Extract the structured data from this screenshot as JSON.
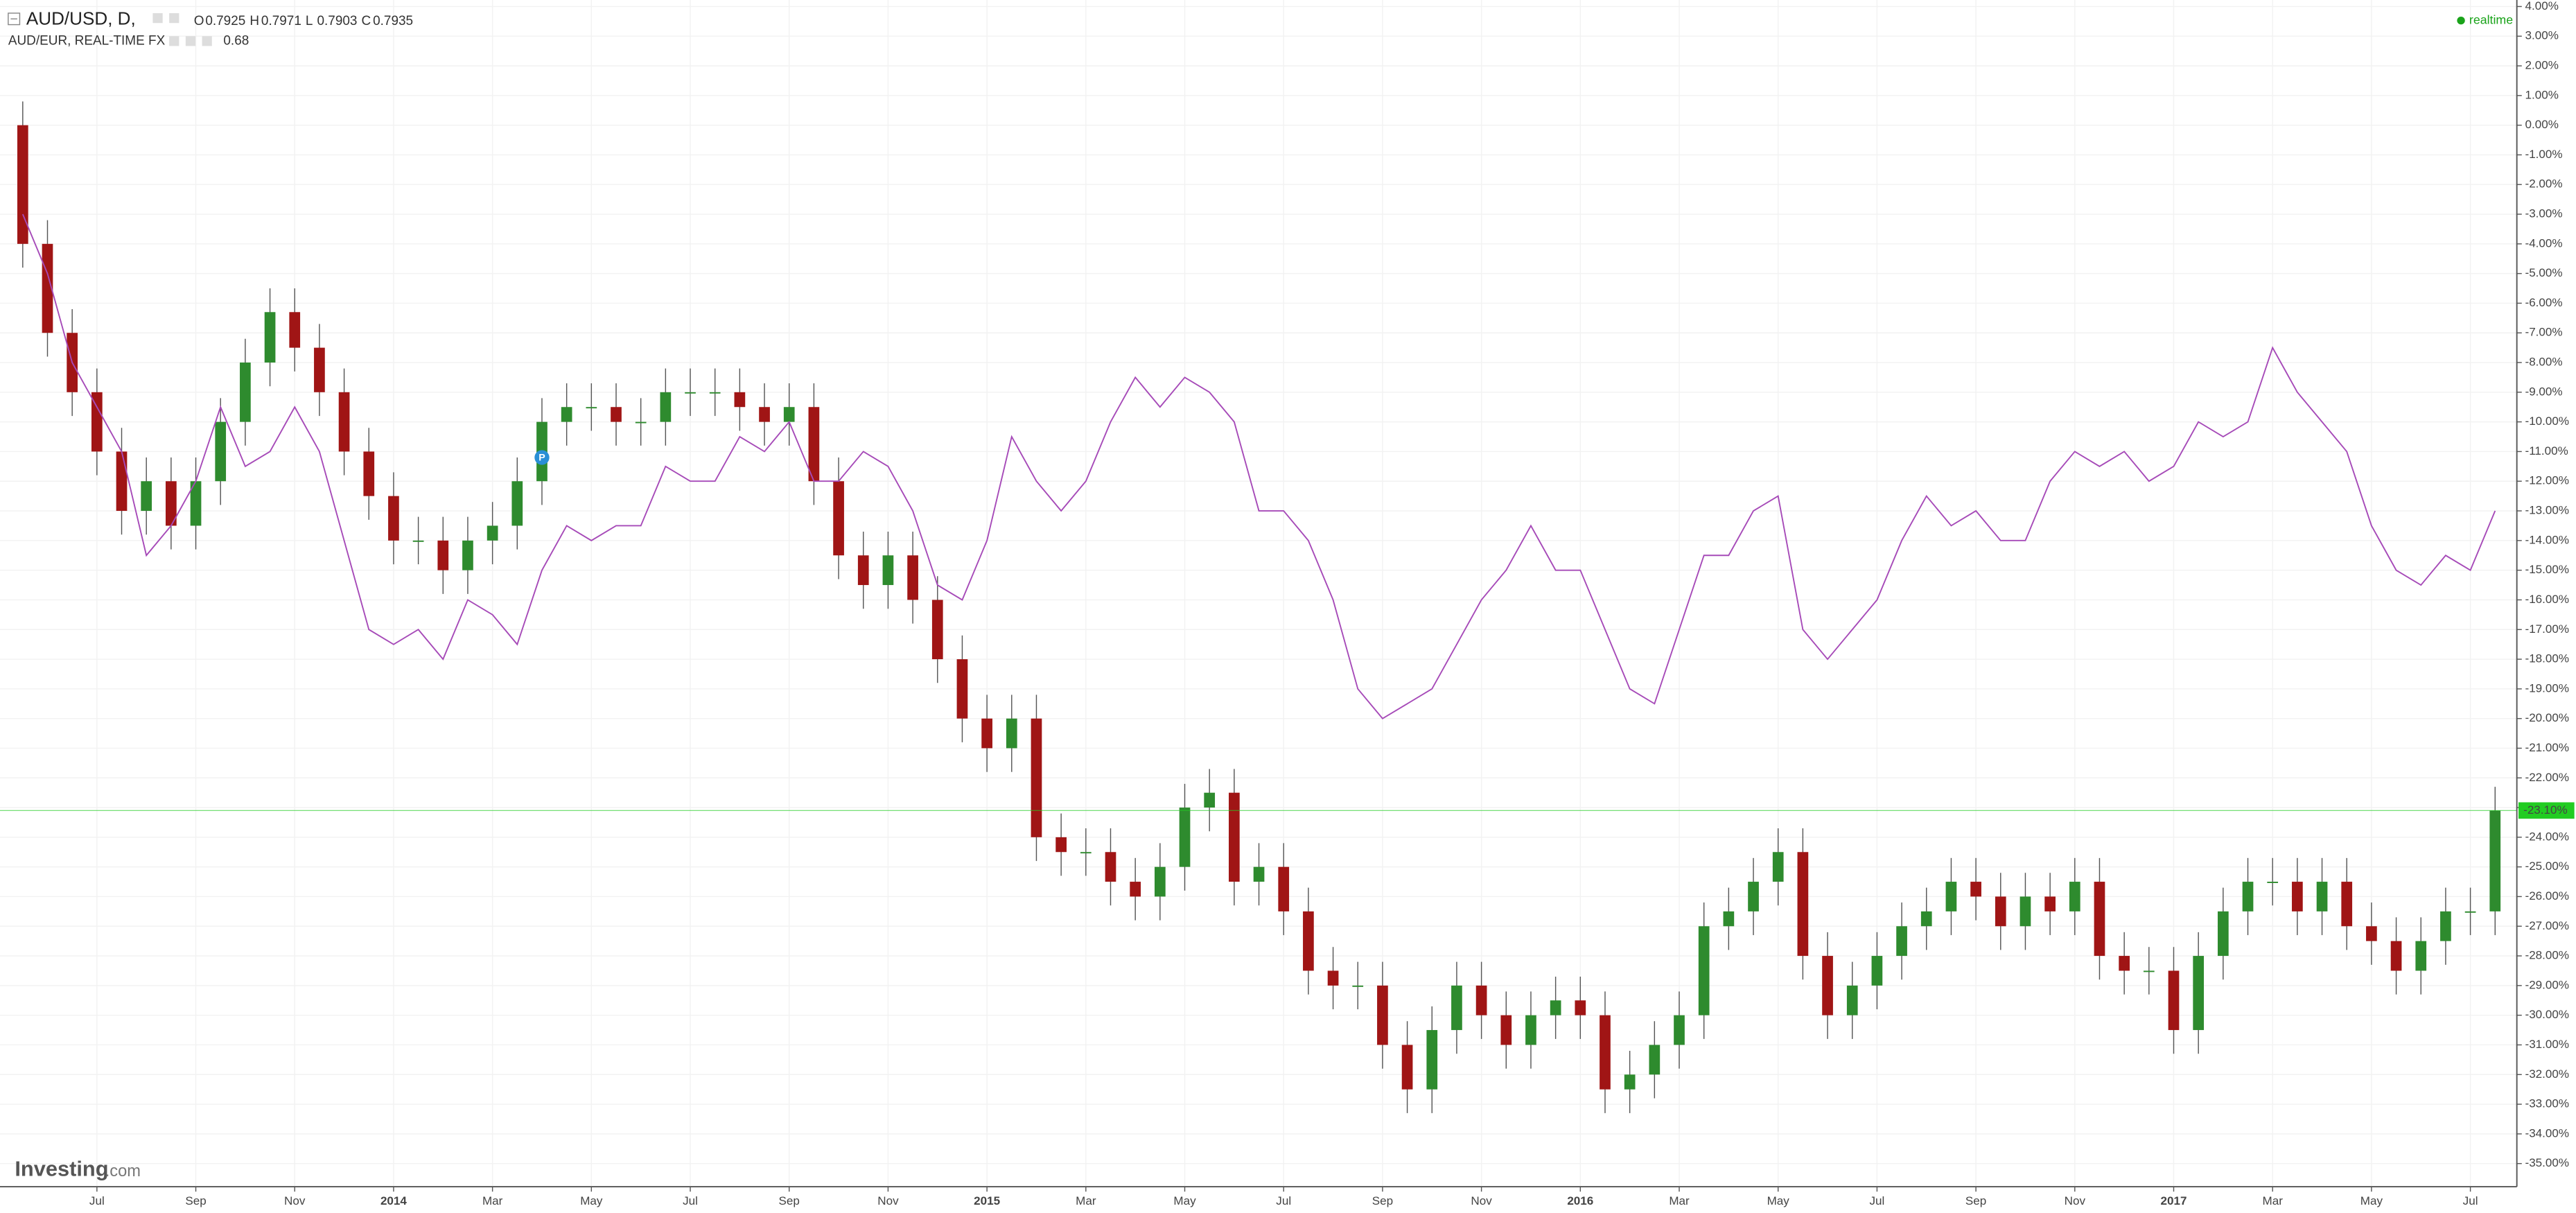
{
  "chart_data": {
    "type": "candlestick",
    "grid": true,
    "xlim": [
      4.04,
      54.94
    ],
    "ylim": [
      -35.78,
      4.22
    ],
    "xticks": [
      {
        "value": 6,
        "label": "Jul"
      },
      {
        "value": 8,
        "label": "Sep"
      },
      {
        "value": 10,
        "label": "Nov"
      },
      {
        "value": 12,
        "label": "2014"
      },
      {
        "value": 14,
        "label": "Mar"
      },
      {
        "value": 16,
        "label": "May"
      },
      {
        "value": 18,
        "label": "Jul"
      },
      {
        "value": 20,
        "label": "Sep"
      },
      {
        "value": 22,
        "label": "Nov"
      },
      {
        "value": 24,
        "label": "2015"
      },
      {
        "value": 26,
        "label": "Mar"
      },
      {
        "value": 28,
        "label": "May"
      },
      {
        "value": 30,
        "label": "Jul"
      },
      {
        "value": 32,
        "label": "Sep"
      },
      {
        "value": 34,
        "label": "Nov"
      },
      {
        "value": 36,
        "label": "2016"
      },
      {
        "value": 38,
        "label": "Mar"
      },
      {
        "value": 40,
        "label": "May"
      },
      {
        "value": 42,
        "label": "Jul"
      },
      {
        "value": 44,
        "label": "Sep"
      },
      {
        "value": 46,
        "label": "Nov"
      },
      {
        "value": 48,
        "label": "2017"
      },
      {
        "value": 50,
        "label": "Mar"
      },
      {
        "value": 52,
        "label": "May"
      },
      {
        "value": 54,
        "label": "Jul"
      }
    ],
    "yticks": [
      {
        "value": 4,
        "label": "4.00%"
      },
      {
        "value": 3,
        "label": "3.00%"
      },
      {
        "value": 2,
        "label": "2.00%"
      },
      {
        "value": 1,
        "label": "1.00%"
      },
      {
        "value": 0,
        "label": "0.00%"
      },
      {
        "value": -1,
        "label": "-1.00%"
      },
      {
        "value": -2,
        "label": "-2.00%"
      },
      {
        "value": -3,
        "label": "-3.00%"
      },
      {
        "value": -4,
        "label": "-4.00%"
      },
      {
        "value": -5,
        "label": "-5.00%"
      },
      {
        "value": -6,
        "label": "-6.00%"
      },
      {
        "value": -7,
        "label": "-7.00%"
      },
      {
        "value": -8,
        "label": "-8.00%"
      },
      {
        "value": -9,
        "label": "-9.00%"
      },
      {
        "value": -10,
        "label": "-10.00%"
      },
      {
        "value": -11,
        "label": "-11.00%"
      },
      {
        "value": -12,
        "label": "-12.00%"
      },
      {
        "value": -13,
        "label": "-13.00%"
      },
      {
        "value": -14,
        "label": "-14.00%"
      },
      {
        "value": -15,
        "label": "-15.00%"
      },
      {
        "value": -16,
        "label": "-16.00%"
      },
      {
        "value": -17,
        "label": "-17.00%"
      },
      {
        "value": -18,
        "label": "-18.00%"
      },
      {
        "value": -19,
        "label": "-19.00%"
      },
      {
        "value": -20,
        "label": "-20.00%"
      },
      {
        "value": -21,
        "label": "-21.00%"
      },
      {
        "value": -22,
        "label": "-22.00%"
      },
      {
        "value": -23,
        "label": "-23.00%"
      },
      {
        "value": -24,
        "label": "-24.00%"
      },
      {
        "value": -25,
        "label": "-25.00%"
      },
      {
        "value": -26,
        "label": "-26.00%"
      },
      {
        "value": -27,
        "label": "-27.00%"
      },
      {
        "value": -28,
        "label": "-28.00%"
      },
      {
        "value": -29,
        "label": "-29.00%"
      },
      {
        "value": -30,
        "label": "-30.00%"
      },
      {
        "value": -31,
        "label": "-31.00%"
      },
      {
        "value": -32,
        "label": "-32.00%"
      },
      {
        "value": -33,
        "label": "-33.00%"
      },
      {
        "value": -34,
        "label": "-34.00%"
      },
      {
        "value": -35,
        "label": "-35.00%"
      }
    ],
    "ohlc": [
      {
        "label": "O",
        "value": 0.7925
      },
      {
        "label": "H",
        "value": 0.7971
      },
      {
        "label": "L",
        "value": 0.7903
      },
      {
        "label": "C",
        "value": 0.7935
      }
    ],
    "ohlc_color": "#1aa31a",
    "status": "realtime",
    "logo": {
      "brand": "Investing",
      "domain": ".com"
    },
    "last_value": {
      "value": -23.1,
      "label": "-23.10%",
      "color": "#22cc22"
    },
    "annotations": [
      {
        "x": 15,
        "y": -11.2,
        "text": "P",
        "color": "#2a8fd6"
      }
    ],
    "x": [
      4.5,
      5,
      5.5,
      6,
      6.5,
      7,
      7.5,
      8,
      8.5,
      9,
      9.5,
      10,
      10.5,
      11,
      11.5,
      12,
      12.5,
      13,
      13.5,
      14,
      14.5,
      15,
      15.5,
      16,
      16.5,
      17,
      17.5,
      18,
      18.5,
      19,
      19.5,
      20,
      20.5,
      21,
      21.5,
      22,
      22.5,
      23,
      23.5,
      24,
      24.5,
      25,
      25.5,
      26,
      26.5,
      27,
      27.5,
      28,
      28.5,
      29,
      29.5,
      30,
      30.5,
      31,
      31.5,
      32,
      32.5,
      33,
      33.5,
      34,
      34.5,
      35,
      35.5,
      36,
      36.5,
      37,
      37.5,
      38,
      38.5,
      39,
      39.5,
      40,
      40.5,
      41,
      41.5,
      42,
      42.5,
      43,
      43.5,
      44,
      44.5,
      45,
      45.5,
      46,
      46.5,
      47,
      47.5,
      48,
      48.5,
      49,
      49.5,
      50,
      50.5,
      51,
      51.5,
      52,
      52.5,
      53,
      53.5,
      54,
      54.5
    ],
    "series": [
      {
        "name": "AUD/USD, D,",
        "type": "candlestick",
        "up_color": "#2e8b2e",
        "down_color": "#a01515",
        "wick_color": "#555555",
        "open": [
          0,
          -4,
          -7,
          -9,
          -11,
          -13,
          -12,
          -13.5,
          -12,
          -10,
          -8,
          -6.3,
          -7.5,
          -9,
          -11,
          -12.5,
          -14,
          -14,
          -15,
          -14,
          -13.5,
          -12,
          -10,
          -9.5,
          -9.5,
          -10,
          -10,
          -9,
          -9,
          -9,
          -9.5,
          -10,
          -9.5,
          -12,
          -14.5,
          -15.5,
          -14.5,
          -16,
          -18,
          -20,
          -21,
          -20,
          -24,
          -24.5,
          -24.5,
          -25.5,
          -26,
          -25,
          -23,
          -22.5,
          -25.5,
          -25,
          -26.5,
          -28.5,
          -29,
          -29,
          -31,
          -32.5,
          -30.5,
          -29,
          -30,
          -31,
          -30,
          -29.5,
          -30,
          -32.5,
          -32,
          -31,
          -30,
          -27,
          -26.5,
          -25.5,
          -24.5,
          -28,
          -30,
          -29,
          -28,
          -27,
          -26.5,
          -25.5,
          -26,
          -27,
          -26,
          -26.5,
          -25.5,
          -28,
          -28.5,
          -28.5,
          -30.5,
          -28,
          -26.5,
          -25.5,
          -25.5,
          -26.5,
          -25.5,
          -27,
          -27.5,
          -28.5,
          -27.5,
          -26.5,
          -26.5
        ],
        "high": [
          0.8,
          -3.2,
          -6.2,
          -8.2,
          -10.2,
          -11.2,
          -11.2,
          -11.2,
          -9.2,
          -7.2,
          -5.5,
          -5.5,
          -6.7,
          -8.2,
          -10.2,
          -11.7,
          -13.2,
          -13.2,
          -13.2,
          -12.7,
          -11.2,
          -9.2,
          -8.7,
          -8.7,
          -8.7,
          -9.2,
          -8.2,
          -8.2,
          -8.2,
          -8.2,
          -8.7,
          -8.7,
          -8.7,
          -11.2,
          -13.7,
          -13.7,
          -13.7,
          -15.2,
          -17.2,
          -19.2,
          -19.2,
          -19.2,
          -23.2,
          -23.7,
          -23.7,
          -24.7,
          -24.2,
          -22.2,
          -21.7,
          -21.7,
          -24.2,
          -24.2,
          -25.7,
          -27.7,
          -28.2,
          -28.2,
          -30.2,
          -29.7,
          -28.2,
          -28.2,
          -29.2,
          -29.2,
          -28.7,
          -28.7,
          -29.2,
          -31.2,
          -30.2,
          -29.2,
          -26.2,
          -25.7,
          -24.7,
          -23.7,
          -23.7,
          -27.2,
          -28.2,
          -27.2,
          -26.2,
          -25.7,
          -24.7,
          -24.7,
          -25.2,
          -25.2,
          -25.2,
          -24.7,
          -24.7,
          -27.2,
          -27.7,
          -27.7,
          -27.2,
          -25.7,
          -24.7,
          -24.7,
          -24.7,
          -24.7,
          -24.7,
          -26.2,
          -26.7,
          -26.7,
          -25.7,
          -25.7,
          -22.3
        ],
        "low": [
          -4.8,
          -7.8,
          -9.8,
          -11.8,
          -13.8,
          -13.8,
          -14.3,
          -14.3,
          -12.8,
          -10.8,
          -8.8,
          -8.3,
          -9.8,
          -11.8,
          -13.3,
          -14.8,
          -14.8,
          -15.8,
          -15.8,
          -14.8,
          -14.3,
          -12.8,
          -10.8,
          -10.3,
          -10.8,
          -10.8,
          -10.8,
          -9.8,
          -9.8,
          -10.3,
          -10.8,
          -10.8,
          -12.8,
          -15.3,
          -16.3,
          -16.3,
          -16.8,
          -18.8,
          -20.8,
          -21.8,
          -21.8,
          -24.8,
          -25.3,
          -25.3,
          -26.3,
          -26.8,
          -26.8,
          -25.8,
          -23.8,
          -26.3,
          -26.3,
          -27.3,
          -29.3,
          -29.8,
          -29.8,
          -31.8,
          -33.3,
          -33.3,
          -31.3,
          -30.8,
          -31.8,
          -31.8,
          -30.8,
          -30.8,
          -33.3,
          -33.3,
          -32.8,
          -31.8,
          -30.8,
          -27.8,
          -27.3,
          -26.3,
          -28.8,
          -30.8,
          -30.8,
          -29.8,
          -28.8,
          -27.8,
          -27.3,
          -26.8,
          -27.8,
          -27.8,
          -27.3,
          -27.3,
          -28.8,
          -29.3,
          -29.3,
          -31.3,
          -31.3,
          -28.8,
          -27.3,
          -26.3,
          -27.3,
          -27.3,
          -27.8,
          -28.3,
          -29.3,
          -29.3,
          -28.3,
          -27.3,
          -27.3
        ],
        "close": [
          -4,
          -7,
          -9,
          -11,
          -13,
          -12,
          -13.5,
          -12,
          -10,
          -8,
          -6.3,
          -7.5,
          -9,
          -11,
          -12.5,
          -14,
          -14,
          -15,
          -14,
          -13.5,
          -12,
          -10,
          -9.5,
          -9.5,
          -10,
          -10,
          -9,
          -9,
          -9,
          -9.5,
          -10,
          -9.5,
          -12,
          -14.5,
          -15.5,
          -14.5,
          -16,
          -18,
          -20,
          -21,
          -20,
          -24,
          -24.5,
          -24.5,
          -25.5,
          -26,
          -25,
          -23,
          -22.5,
          -25.5,
          -25,
          -26.5,
          -28.5,
          -29,
          -29,
          -31,
          -32.5,
          -30.5,
          -29,
          -30,
          -31,
          -30,
          -29.5,
          -30,
          -32.5,
          -32,
          -31,
          -30,
          -27,
          -26.5,
          -25.5,
          -24.5,
          -28,
          -30,
          -29,
          -28,
          -27,
          -26.5,
          -25.5,
          -26,
          -27,
          -26,
          -26.5,
          -25.5,
          -28,
          -28.5,
          -28.5,
          -30.5,
          -28,
          -26.5,
          -25.5,
          -25.5,
          -26.5,
          -25.5,
          -27,
          -27.5,
          -28.5,
          -27.5,
          -26.5,
          -26.5,
          -23.1
        ]
      },
      {
        "name": "AUD/EUR, REAL-TIME FX",
        "type": "line",
        "color": "#a64ab8",
        "last": 0.68,
        "values": [
          -3,
          -5,
          -8,
          -9.5,
          -11,
          -14.5,
          -13.5,
          -12,
          -9.5,
          -11.5,
          -11,
          -9.5,
          -11,
          -14,
          -17,
          -17.5,
          -17,
          -18,
          -16,
          -16.5,
          -17.5,
          -15,
          -13.5,
          -14,
          -13.5,
          -13.5,
          -11.5,
          -12,
          -12,
          -10.5,
          -11,
          -10,
          -12,
          -12,
          -11,
          -11.5,
          -13,
          -15.5,
          -16,
          -14,
          -10.5,
          -12,
          -13,
          -12,
          -10,
          -8.5,
          -9.5,
          -8.5,
          -9,
          -10,
          -13,
          -13,
          -14,
          -16,
          -19,
          -20,
          -19.5,
          -19,
          -17.5,
          -16,
          -15,
          -13.5,
          -15,
          -15,
          -17,
          -19,
          -19.5,
          -17,
          -14.5,
          -14.5,
          -13,
          -12.5,
          -17,
          -18,
          -17,
          -16,
          -14,
          -12.5,
          -13.5,
          -13,
          -14,
          -14,
          -12,
          -11,
          -11.5,
          -11,
          -12,
          -11.5,
          -10,
          -10.5,
          -10,
          -7.5,
          -9,
          -10,
          -11,
          -13.5,
          -15,
          -15.5,
          -14.5,
          -15,
          -13
        ]
      }
    ]
  }
}
